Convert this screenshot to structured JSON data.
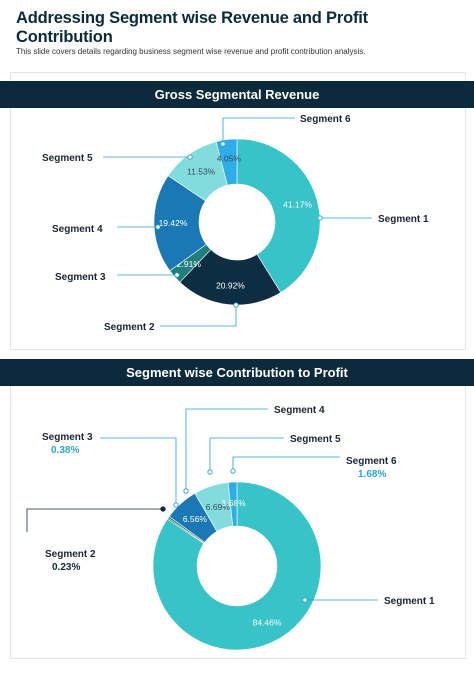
{
  "page": {
    "title": "Addressing Segment wise Revenue and Profit Contribution",
    "subtitle": "This slide covers details regarding business segment wise revenue  and profit contribution analysis."
  },
  "colors": {
    "navy": "#0d2a3d",
    "teal": "#38c3c9",
    "dark_navy": "#0c2d42",
    "dark_teal": "#1f7f7c",
    "blue": "#1a78b5",
    "light_teal": "#82dcde",
    "bright_blue": "#2eaee9",
    "highlight": "#2fa3cf"
  },
  "chart_data": [
    {
      "type": "pie",
      "title": "Gross Segmental Revenue",
      "donut": true,
      "slices": [
        {
          "label": "Segment 1",
          "value": 41.17,
          "value_label": "41.17%",
          "color": "#38c3c9"
        },
        {
          "label": "Segment 2",
          "value": 20.92,
          "value_label": "20.92%",
          "color": "#0c2d42"
        },
        {
          "label": "Segment 3",
          "value": 2.91,
          "value_label": "2.91%",
          "color": "#1f7f7c"
        },
        {
          "label": "Segment 4",
          "value": 19.42,
          "value_label": "19.42%",
          "color": "#1a78b5"
        },
        {
          "label": "Segment 5",
          "value": 11.53,
          "value_label": "11.53%",
          "color": "#82dcde"
        },
        {
          "label": "Segment 6",
          "value": 4.05,
          "value_label": "4.05%",
          "color": "#2eaee9"
        }
      ]
    },
    {
      "type": "pie",
      "title": "Segment wise Contribution to Profit",
      "donut": true,
      "slices": [
        {
          "label": "Segment 1",
          "value": 84.46,
          "value_label": "84.46%",
          "color": "#38c3c9"
        },
        {
          "label": "Segment 2",
          "value": 0.23,
          "value_label": "0.23%",
          "color": "#0c2d42"
        },
        {
          "label": "Segment 3",
          "value": 0.38,
          "value_label": "0.38%",
          "color": "#1f7f7c"
        },
        {
          "label": "Segment 4",
          "value": 6.56,
          "value_label": "6.56%",
          "color": "#1a78b5"
        },
        {
          "label": "Segment 5",
          "value": 6.69,
          "value_label": "6.69%",
          "color": "#82dcde"
        },
        {
          "label": "Segment 6",
          "value": 1.68,
          "value_label": "1.68%",
          "color": "#2eaee9"
        }
      ]
    }
  ]
}
